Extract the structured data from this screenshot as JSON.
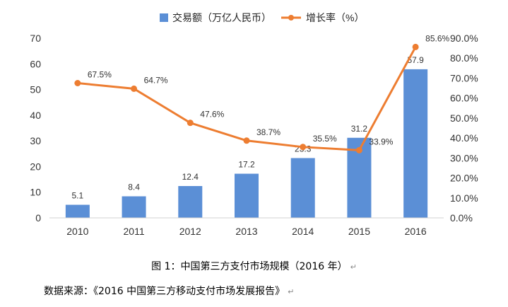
{
  "chart_data": {
    "type": "bar+line",
    "categories": [
      "2010",
      "2011",
      "2012",
      "2013",
      "2014",
      "2015",
      "2016"
    ],
    "series": [
      {
        "name": "交易额（万亿人民币）",
        "type": "bar",
        "axis": "left",
        "color": "#5b8fd6",
        "values": [
          5.1,
          8.4,
          12.4,
          17.2,
          23.3,
          31.2,
          57.9
        ],
        "labels": [
          "5.1",
          "8.4",
          "12.4",
          "17.2",
          "23.3",
          "31.2",
          "57.9"
        ]
      },
      {
        "name": "增长率（%）",
        "type": "line",
        "axis": "right",
        "color": "#ed7d31",
        "values": [
          67.5,
          64.7,
          47.6,
          38.7,
          35.5,
          33.9,
          85.6
        ],
        "labels": [
          "67.5%",
          "64.7%",
          "47.6%",
          "38.7%",
          "35.5%",
          "33.9%",
          "85.6%"
        ]
      }
    ],
    "y_left": {
      "lim": [
        0,
        70
      ],
      "ticks": [
        0,
        10,
        20,
        30,
        40,
        50,
        60,
        70
      ],
      "tick_labels": [
        "0",
        "10",
        "20",
        "30",
        "40",
        "50",
        "60",
        "70"
      ]
    },
    "y_right": {
      "lim": [
        0,
        90
      ],
      "ticks": [
        0,
        10,
        20,
        30,
        40,
        50,
        60,
        70,
        80,
        90
      ],
      "tick_labels": [
        "0.0%",
        "10.0%",
        "20.0%",
        "30.0%",
        "40.0%",
        "50.0%",
        "60.0%",
        "70.0%",
        "80.0%",
        "90.0%"
      ]
    },
    "legend_position": "top-center",
    "grid": false
  },
  "caption": "图 1：中国第三方支付市场规模（2016 年）",
  "source": "数据来源：《2016 中国第三方移动支付市场发展报告》",
  "paragraph_mark": "↵"
}
